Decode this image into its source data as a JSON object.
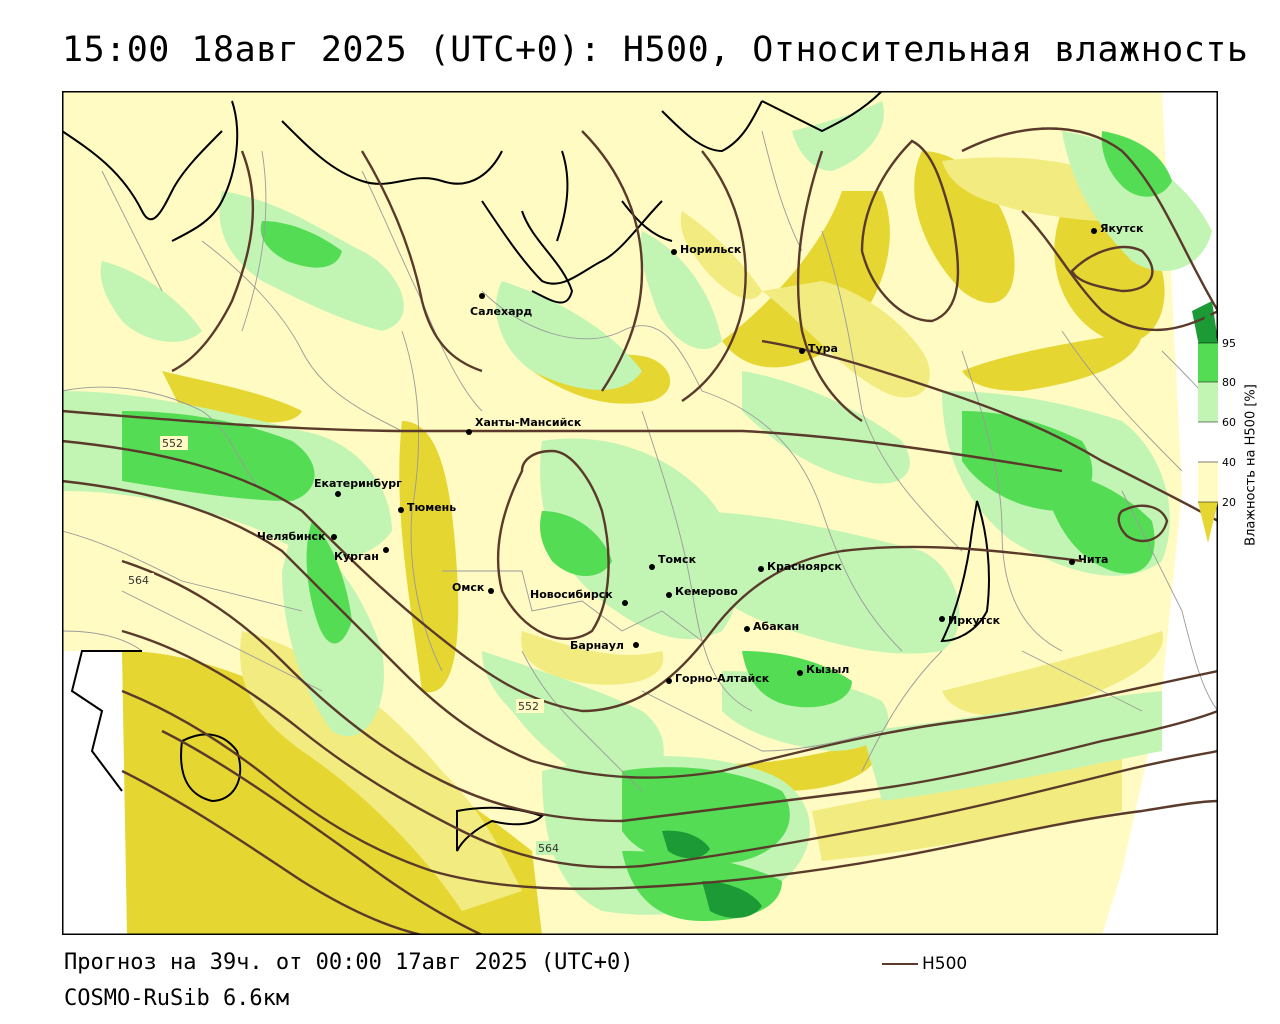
{
  "title": "15:00 18авг 2025 (UTC+0): H500, Относительная влажность",
  "footer": {
    "forecast": "Прогноз на 39ч. от 00:00 17авг 2025 (UTC+0)",
    "model": "COSMO-RuSib 6.6км"
  },
  "line_key": {
    "label": "H500",
    "color": "#5a3a2a"
  },
  "legend": {
    "title": "Влажность на H500 [%]",
    "ticks": [
      "95",
      "80",
      "60",
      "40",
      "20"
    ],
    "colors": {
      "lt20": "#e5d632",
      "20_40": "#f2ec80",
      "40_60": "#fffbc2",
      "60_80": "#c2f5b4",
      "80_95": "#55dc55",
      "gt95": "#1c9a36"
    }
  },
  "cities": [
    {
      "name": "Норильск"
    },
    {
      "name": "Салехард"
    },
    {
      "name": "Тура"
    },
    {
      "name": "Якутск"
    },
    {
      "name": "Ханты-Мансийск"
    },
    {
      "name": "Екатеринбург"
    },
    {
      "name": "Тюмень"
    },
    {
      "name": "Челябинск"
    },
    {
      "name": "Курган"
    },
    {
      "name": "Омск"
    },
    {
      "name": "Новосибирск"
    },
    {
      "name": "Томск"
    },
    {
      "name": "Кемерово"
    },
    {
      "name": "Красноярск"
    },
    {
      "name": "Абакан"
    },
    {
      "name": "Барнаул"
    },
    {
      "name": "Горно-Алтайск"
    },
    {
      "name": "Кызыл"
    },
    {
      "name": "Иркутск"
    },
    {
      "name": "Чита"
    }
  ],
  "contour_labels": [
    "552",
    "564",
    "552",
    "564"
  ]
}
